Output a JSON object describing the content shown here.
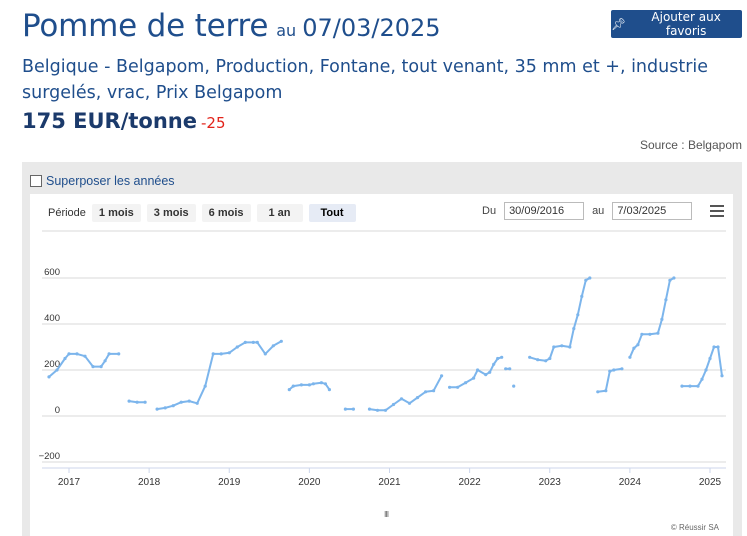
{
  "header": {
    "title": "Pomme de terre",
    "date_prefix": "au",
    "date": "07/03/2025",
    "favorite_label": "Ajouter aux favoris",
    "favorite_icon": "pushpin-icon"
  },
  "product": {
    "description": "Belgique - Belgapom, Production, Fontane, tout venant, 35 mm et +, industrie surgelés, vrac, Prix Belgapom",
    "price": "175 EUR/tonne",
    "change": "-25",
    "source": "Source : Belgapom"
  },
  "controls": {
    "overlay_label": "Superposer les années",
    "overlay_checked": false,
    "period_label": "Période",
    "ranges": [
      {
        "label": "1 mois",
        "active": false
      },
      {
        "label": "3 mois",
        "active": false
      },
      {
        "label": "6 mois",
        "active": false
      },
      {
        "label": "1 an",
        "active": false
      },
      {
        "label": "Tout",
        "active": true
      }
    ],
    "from_label": "Du",
    "from_value": "30/09/2016",
    "to_label": "au",
    "to_value": "7/03/2025",
    "menu_icon": "hamburger-icon",
    "credit": "© Réussir SA",
    "navigator_handle": "III"
  },
  "colors": {
    "primary": "#1f4e8c",
    "negative": "#e2231a",
    "series": "#7cb5ec"
  },
  "chart_data": {
    "type": "line",
    "title": "",
    "xlabel": "",
    "ylabel": "",
    "xlim": [
      2016.75,
      2025.2
    ],
    "ylim": [
      -200,
      700
    ],
    "y_ticks": [
      -200,
      0,
      200,
      400,
      600
    ],
    "x_ticks": [
      2017,
      2018,
      2019,
      2020,
      2021,
      2022,
      2023,
      2024,
      2025
    ],
    "y_tick_labels": [
      "−200",
      "0",
      "200",
      "400",
      "600"
    ],
    "x_tick_labels": [
      "2017",
      "2018",
      "2019",
      "2020",
      "2021",
      "2022",
      "2023",
      "2024",
      "2025"
    ],
    "grid": true,
    "legend": "none",
    "series": [
      {
        "name": "",
        "segments": [
          [
            [
              2016.75,
              170
            ],
            [
              2016.85,
              200
            ],
            [
              2016.95,
              250
            ],
            [
              2017.0,
              270
            ],
            [
              2017.1,
              270
            ],
            [
              2017.2,
              260
            ],
            [
              2017.3,
              215
            ],
            [
              2017.4,
              215
            ],
            [
              2017.45,
              240
            ],
            [
              2017.5,
              270
            ],
            [
              2017.62,
              270
            ]
          ],
          [
            [
              2017.75,
              65
            ],
            [
              2017.85,
              60
            ],
            [
              2017.95,
              60
            ]
          ],
          [
            [
              2018.1,
              30
            ],
            [
              2018.2,
              35
            ],
            [
              2018.3,
              45
            ],
            [
              2018.4,
              60
            ],
            [
              2018.5,
              65
            ],
            [
              2018.6,
              55
            ],
            [
              2018.7,
              130
            ],
            [
              2018.8,
              270
            ],
            [
              2018.9,
              270
            ],
            [
              2019.0,
              275
            ],
            [
              2019.1,
              300
            ],
            [
              2019.2,
              320
            ],
            [
              2019.3,
              320
            ],
            [
              2019.35,
              320
            ],
            [
              2019.45,
              270
            ],
            [
              2019.55,
              305
            ],
            [
              2019.65,
              325
            ]
          ],
          [
            [
              2019.75,
              115
            ],
            [
              2019.8,
              130
            ],
            [
              2019.9,
              135
            ],
            [
              2020.0,
              135
            ],
            [
              2020.05,
              140
            ],
            [
              2020.15,
              145
            ],
            [
              2020.2,
              140
            ],
            [
              2020.25,
              115
            ]
          ],
          [
            [
              2020.45,
              30
            ],
            [
              2020.55,
              30
            ]
          ],
          [
            [
              2020.75,
              30
            ],
            [
              2020.85,
              25
            ],
            [
              2020.95,
              25
            ],
            [
              2021.05,
              50
            ],
            [
              2021.15,
              75
            ],
            [
              2021.25,
              55
            ],
            [
              2021.35,
              80
            ],
            [
              2021.45,
              105
            ],
            [
              2021.55,
              110
            ],
            [
              2021.65,
              175
            ]
          ],
          [
            [
              2021.75,
              125
            ],
            [
              2021.85,
              125
            ],
            [
              2021.95,
              145
            ],
            [
              2022.05,
              165
            ],
            [
              2022.1,
              200
            ],
            [
              2022.2,
              180
            ],
            [
              2022.25,
              190
            ],
            [
              2022.3,
              225
            ],
            [
              2022.35,
              250
            ],
            [
              2022.4,
              255
            ]
          ],
          [
            [
              2022.45,
              205
            ],
            [
              2022.5,
              205
            ]
          ],
          [
            [
              2022.55,
              130
            ]
          ],
          [
            [
              2022.75,
              255
            ],
            [
              2022.85,
              245
            ],
            [
              2022.95,
              240
            ],
            [
              2023.0,
              250
            ],
            [
              2023.05,
              300
            ],
            [
              2023.15,
              305
            ],
            [
              2023.25,
              300
            ],
            [
              2023.3,
              380
            ],
            [
              2023.35,
              440
            ],
            [
              2023.4,
              520
            ],
            [
              2023.45,
              590
            ],
            [
              2023.5,
              600
            ]
          ],
          [
            [
              2023.6,
              105
            ],
            [
              2023.7,
              110
            ],
            [
              2023.75,
              195
            ],
            [
              2023.8,
              200
            ],
            [
              2023.9,
              205
            ]
          ],
          [
            [
              2024.0,
              255
            ],
            [
              2024.05,
              295
            ],
            [
              2024.1,
              310
            ],
            [
              2024.15,
              355
            ],
            [
              2024.25,
              355
            ],
            [
              2024.35,
              360
            ],
            [
              2024.4,
              420
            ],
            [
              2024.45,
              505
            ],
            [
              2024.5,
              590
            ],
            [
              2024.55,
              600
            ]
          ],
          [
            [
              2024.65,
              130
            ],
            [
              2024.75,
              130
            ],
            [
              2024.85,
              130
            ],
            [
              2024.9,
              160
            ],
            [
              2024.95,
              200
            ],
            [
              2025.0,
              250
            ],
            [
              2025.05,
              300
            ],
            [
              2025.1,
              300
            ],
            [
              2025.15,
              175
            ]
          ]
        ]
      }
    ]
  }
}
